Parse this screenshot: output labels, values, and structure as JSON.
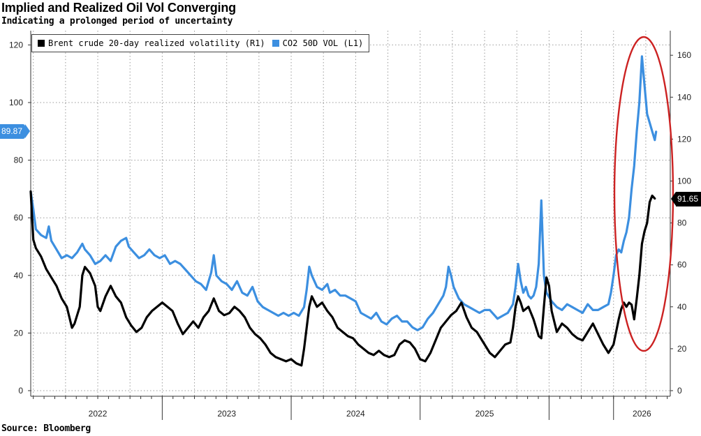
{
  "header": {
    "title": "Implied and Realized Oil Vol Converging",
    "subtitle": "Indicating a prolonged period of uncertainty"
  },
  "footer": {
    "source": "Source: Bloomberg"
  },
  "legend": {
    "items": [
      {
        "label": "Brent crude 20-day realized volatility (R1)",
        "color": "#000000"
      },
      {
        "label": "CO2 50D VOL  (L1)",
        "color": "#3c8fe0"
      }
    ]
  },
  "callouts": {
    "left_value": "89.87",
    "right_value": "91.65"
  },
  "chart_data": {
    "type": "line",
    "title": "Implied and Realized Oil Vol Converging",
    "subtitle": "Indicating a prolonged period of uncertainty",
    "x_axis": {
      "unit": "year-fraction",
      "range": [
        2021.48,
        2026.44
      ],
      "tick_labels": [
        "2022",
        "2023",
        "2024",
        "2025",
        "2026"
      ],
      "grid": true
    },
    "y_left": {
      "range": [
        0,
        125
      ],
      "ticks": [
        0,
        20,
        40,
        60,
        80,
        100,
        120
      ],
      "series": "CO2 50D VOL  (L1)"
    },
    "y_right": {
      "range": [
        0,
        170
      ],
      "ticks": [
        0,
        20,
        40,
        60,
        80,
        100,
        120,
        140,
        160
      ],
      "series": "Brent crude 20-day realized volatility (R1)"
    },
    "series": [
      {
        "name": "CO2 50D VOL  (L1)",
        "axis": "left",
        "color": "#3c8fe0",
        "points": [
          [
            2021.48,
            69
          ],
          [
            2021.5,
            63
          ],
          [
            2021.52,
            56
          ],
          [
            2021.56,
            54
          ],
          [
            2021.6,
            53
          ],
          [
            2021.62,
            57
          ],
          [
            2021.64,
            52
          ],
          [
            2021.68,
            49
          ],
          [
            2021.72,
            46
          ],
          [
            2021.76,
            47
          ],
          [
            2021.8,
            46
          ],
          [
            2021.84,
            48
          ],
          [
            2021.88,
            51
          ],
          [
            2021.9,
            49
          ],
          [
            2021.94,
            47
          ],
          [
            2021.98,
            44
          ],
          [
            2022.02,
            45
          ],
          [
            2022.06,
            47
          ],
          [
            2022.1,
            45
          ],
          [
            2022.14,
            50
          ],
          [
            2022.18,
            52
          ],
          [
            2022.22,
            53
          ],
          [
            2022.24,
            50
          ],
          [
            2022.28,
            48
          ],
          [
            2022.32,
            46
          ],
          [
            2022.36,
            47
          ],
          [
            2022.4,
            49
          ],
          [
            2022.44,
            47
          ],
          [
            2022.48,
            46
          ],
          [
            2022.52,
            47
          ],
          [
            2022.56,
            44
          ],
          [
            2022.6,
            45
          ],
          [
            2022.64,
            44
          ],
          [
            2022.68,
            42
          ],
          [
            2022.72,
            40
          ],
          [
            2022.76,
            38
          ],
          [
            2022.8,
            37
          ],
          [
            2022.84,
            35
          ],
          [
            2022.88,
            41
          ],
          [
            2022.9,
            47
          ],
          [
            2022.92,
            40
          ],
          [
            2022.96,
            38
          ],
          [
            2023.0,
            37
          ],
          [
            2023.04,
            35
          ],
          [
            2023.08,
            38
          ],
          [
            2023.12,
            34
          ],
          [
            2023.16,
            33
          ],
          [
            2023.2,
            36
          ],
          [
            2023.24,
            31
          ],
          [
            2023.28,
            29
          ],
          [
            2023.32,
            28
          ],
          [
            2023.36,
            27
          ],
          [
            2023.4,
            26
          ],
          [
            2023.44,
            27
          ],
          [
            2023.48,
            26
          ],
          [
            2023.52,
            27
          ],
          [
            2023.56,
            26
          ],
          [
            2023.6,
            29
          ],
          [
            2023.62,
            35
          ],
          [
            2023.64,
            43
          ],
          [
            2023.66,
            40
          ],
          [
            2023.7,
            36
          ],
          [
            2023.74,
            35
          ],
          [
            2023.78,
            37
          ],
          [
            2023.8,
            34
          ],
          [
            2023.84,
            35
          ],
          [
            2023.88,
            33
          ],
          [
            2023.92,
            33
          ],
          [
            2023.96,
            32
          ],
          [
            2024.0,
            31
          ],
          [
            2024.04,
            27
          ],
          [
            2024.08,
            26
          ],
          [
            2024.12,
            25
          ],
          [
            2024.16,
            27
          ],
          [
            2024.2,
            24
          ],
          [
            2024.24,
            23
          ],
          [
            2024.28,
            25
          ],
          [
            2024.32,
            26
          ],
          [
            2024.36,
            24
          ],
          [
            2024.4,
            24
          ],
          [
            2024.44,
            22
          ],
          [
            2024.48,
            21
          ],
          [
            2024.52,
            22
          ],
          [
            2024.56,
            25
          ],
          [
            2024.6,
            27
          ],
          [
            2024.64,
            30
          ],
          [
            2024.68,
            33
          ],
          [
            2024.7,
            36
          ],
          [
            2024.72,
            43
          ],
          [
            2024.74,
            40
          ],
          [
            2024.76,
            36
          ],
          [
            2024.8,
            32
          ],
          [
            2024.84,
            30
          ],
          [
            2024.88,
            29
          ],
          [
            2024.92,
            28
          ],
          [
            2024.96,
            27
          ],
          [
            2025.0,
            28
          ],
          [
            2025.04,
            28
          ],
          [
            2025.08,
            26
          ],
          [
            2025.1,
            25
          ],
          [
            2025.14,
            26
          ],
          [
            2025.18,
            27
          ],
          [
            2025.22,
            30
          ],
          [
            2025.24,
            36
          ],
          [
            2025.26,
            44
          ],
          [
            2025.28,
            38
          ],
          [
            2025.3,
            34
          ],
          [
            2025.32,
            36
          ],
          [
            2025.34,
            33
          ],
          [
            2025.36,
            32
          ],
          [
            2025.38,
            33
          ],
          [
            2025.4,
            36
          ],
          [
            2025.42,
            44
          ],
          [
            2025.44,
            66
          ],
          [
            2025.46,
            40
          ],
          [
            2025.48,
            34
          ],
          [
            2025.52,
            31
          ],
          [
            2025.56,
            29
          ],
          [
            2025.6,
            28
          ],
          [
            2025.64,
            30
          ],
          [
            2025.68,
            29
          ],
          [
            2025.72,
            28
          ],
          [
            2025.76,
            27
          ],
          [
            2025.8,
            30
          ],
          [
            2025.84,
            28
          ],
          [
            2025.88,
            28
          ],
          [
            2025.92,
            29
          ],
          [
            2025.96,
            30
          ],
          [
            2025.98,
            34
          ],
          [
            2026.0,
            40
          ],
          [
            2026.02,
            47
          ],
          [
            2026.04,
            49
          ],
          [
            2026.06,
            48
          ],
          [
            2026.08,
            52
          ],
          [
            2026.1,
            55
          ],
          [
            2026.12,
            60
          ],
          [
            2026.14,
            70
          ],
          [
            2026.16,
            78
          ],
          [
            2026.18,
            90
          ],
          [
            2026.2,
            100
          ],
          [
            2026.22,
            116
          ],
          [
            2026.24,
            106
          ],
          [
            2026.26,
            96
          ],
          [
            2026.28,
            93
          ],
          [
            2026.3,
            90
          ],
          [
            2026.32,
            87
          ],
          [
            2026.33,
            89.87
          ]
        ]
      },
      {
        "name": "Brent crude 20-day realized volatility (R1)",
        "axis": "right",
        "color": "#000000",
        "points": [
          [
            2021.48,
            95
          ],
          [
            2021.5,
            72
          ],
          [
            2021.52,
            68
          ],
          [
            2021.56,
            64
          ],
          [
            2021.6,
            58
          ],
          [
            2021.64,
            54
          ],
          [
            2021.68,
            50
          ],
          [
            2021.72,
            44
          ],
          [
            2021.76,
            40
          ],
          [
            2021.8,
            30
          ],
          [
            2021.82,
            32
          ],
          [
            2021.86,
            40
          ],
          [
            2021.88,
            55
          ],
          [
            2021.9,
            59
          ],
          [
            2021.94,
            56
          ],
          [
            2021.98,
            50
          ],
          [
            2022.0,
            40
          ],
          [
            2022.02,
            38
          ],
          [
            2022.06,
            45
          ],
          [
            2022.1,
            50
          ],
          [
            2022.14,
            45
          ],
          [
            2022.18,
            42
          ],
          [
            2022.22,
            35
          ],
          [
            2022.26,
            31
          ],
          [
            2022.3,
            28
          ],
          [
            2022.34,
            30
          ],
          [
            2022.38,
            35
          ],
          [
            2022.42,
            38
          ],
          [
            2022.46,
            40
          ],
          [
            2022.5,
            42
          ],
          [
            2022.54,
            40
          ],
          [
            2022.58,
            38
          ],
          [
            2022.62,
            32
          ],
          [
            2022.66,
            27
          ],
          [
            2022.7,
            30
          ],
          [
            2022.74,
            33
          ],
          [
            2022.78,
            30
          ],
          [
            2022.82,
            35
          ],
          [
            2022.86,
            38
          ],
          [
            2022.9,
            44
          ],
          [
            2022.94,
            38
          ],
          [
            2022.98,
            36
          ],
          [
            2023.02,
            37
          ],
          [
            2023.06,
            40
          ],
          [
            2023.1,
            38
          ],
          [
            2023.14,
            35
          ],
          [
            2023.18,
            30
          ],
          [
            2023.22,
            27
          ],
          [
            2023.26,
            25
          ],
          [
            2023.3,
            22
          ],
          [
            2023.34,
            18
          ],
          [
            2023.38,
            16
          ],
          [
            2023.42,
            15
          ],
          [
            2023.46,
            14
          ],
          [
            2023.5,
            15
          ],
          [
            2023.54,
            13
          ],
          [
            2023.58,
            12
          ],
          [
            2023.6,
            20
          ],
          [
            2023.62,
            30
          ],
          [
            2023.64,
            40
          ],
          [
            2023.66,
            45
          ],
          [
            2023.7,
            40
          ],
          [
            2023.74,
            42
          ],
          [
            2023.78,
            38
          ],
          [
            2023.82,
            35
          ],
          [
            2023.86,
            30
          ],
          [
            2023.9,
            28
          ],
          [
            2023.94,
            26
          ],
          [
            2023.98,
            25
          ],
          [
            2024.02,
            22
          ],
          [
            2024.06,
            20
          ],
          [
            2024.1,
            18
          ],
          [
            2024.14,
            17
          ],
          [
            2024.18,
            19
          ],
          [
            2024.22,
            17
          ],
          [
            2024.26,
            16
          ],
          [
            2024.3,
            17
          ],
          [
            2024.34,
            22
          ],
          [
            2024.38,
            24
          ],
          [
            2024.42,
            23
          ],
          [
            2024.46,
            20
          ],
          [
            2024.5,
            15
          ],
          [
            2024.54,
            14
          ],
          [
            2024.58,
            18
          ],
          [
            2024.62,
            24
          ],
          [
            2024.66,
            30
          ],
          [
            2024.7,
            33
          ],
          [
            2024.74,
            36
          ],
          [
            2024.78,
            38
          ],
          [
            2024.82,
            42
          ],
          [
            2024.86,
            35
          ],
          [
            2024.9,
            30
          ],
          [
            2024.94,
            28
          ],
          [
            2025.0,
            22
          ],
          [
            2025.04,
            18
          ],
          [
            2025.08,
            16
          ],
          [
            2025.12,
            19
          ],
          [
            2025.16,
            22
          ],
          [
            2025.2,
            23
          ],
          [
            2025.22,
            30
          ],
          [
            2025.24,
            40
          ],
          [
            2025.26,
            45
          ],
          [
            2025.28,
            42
          ],
          [
            2025.3,
            38
          ],
          [
            2025.34,
            40
          ],
          [
            2025.38,
            34
          ],
          [
            2025.42,
            26
          ],
          [
            2025.44,
            25
          ],
          [
            2025.46,
            40
          ],
          [
            2025.48,
            54
          ],
          [
            2025.5,
            50
          ],
          [
            2025.52,
            38
          ],
          [
            2025.56,
            28
          ],
          [
            2025.6,
            32
          ],
          [
            2025.64,
            30
          ],
          [
            2025.68,
            27
          ],
          [
            2025.72,
            25
          ],
          [
            2025.76,
            24
          ],
          [
            2025.8,
            28
          ],
          [
            2025.84,
            32
          ],
          [
            2025.88,
            27
          ],
          [
            2025.92,
            22
          ],
          [
            2025.96,
            18
          ],
          [
            2026.0,
            22
          ],
          [
            2026.02,
            28
          ],
          [
            2026.04,
            34
          ],
          [
            2026.06,
            39
          ],
          [
            2026.08,
            42
          ],
          [
            2026.1,
            40
          ],
          [
            2026.12,
            42
          ],
          [
            2026.14,
            41
          ],
          [
            2026.16,
            34
          ],
          [
            2026.18,
            44
          ],
          [
            2026.2,
            55
          ],
          [
            2026.22,
            70
          ],
          [
            2026.24,
            76
          ],
          [
            2026.26,
            80
          ],
          [
            2026.28,
            90
          ],
          [
            2026.3,
            93
          ],
          [
            2026.32,
            91.65
          ]
        ]
      }
    ],
    "annotations": [
      {
        "type": "ellipse",
        "color": "#cc2222",
        "note": "highlights 2026 spike"
      }
    ]
  }
}
